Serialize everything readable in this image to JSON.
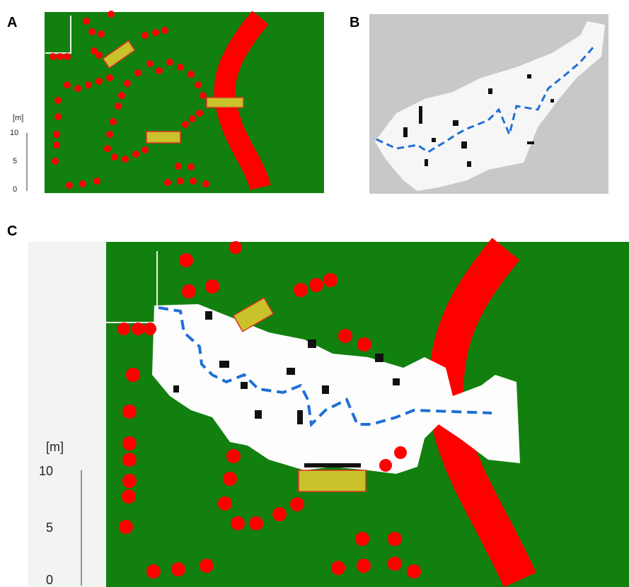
{
  "panels": [
    {
      "label": "A",
      "scale": {
        "unit": "[m]",
        "ticks": [
          10,
          5,
          0
        ]
      }
    },
    {
      "label": "B"
    },
    {
      "label": "C",
      "scale": {
        "unit": "[m]",
        "ticks": [
          10,
          5,
          0
        ]
      }
    }
  ]
}
